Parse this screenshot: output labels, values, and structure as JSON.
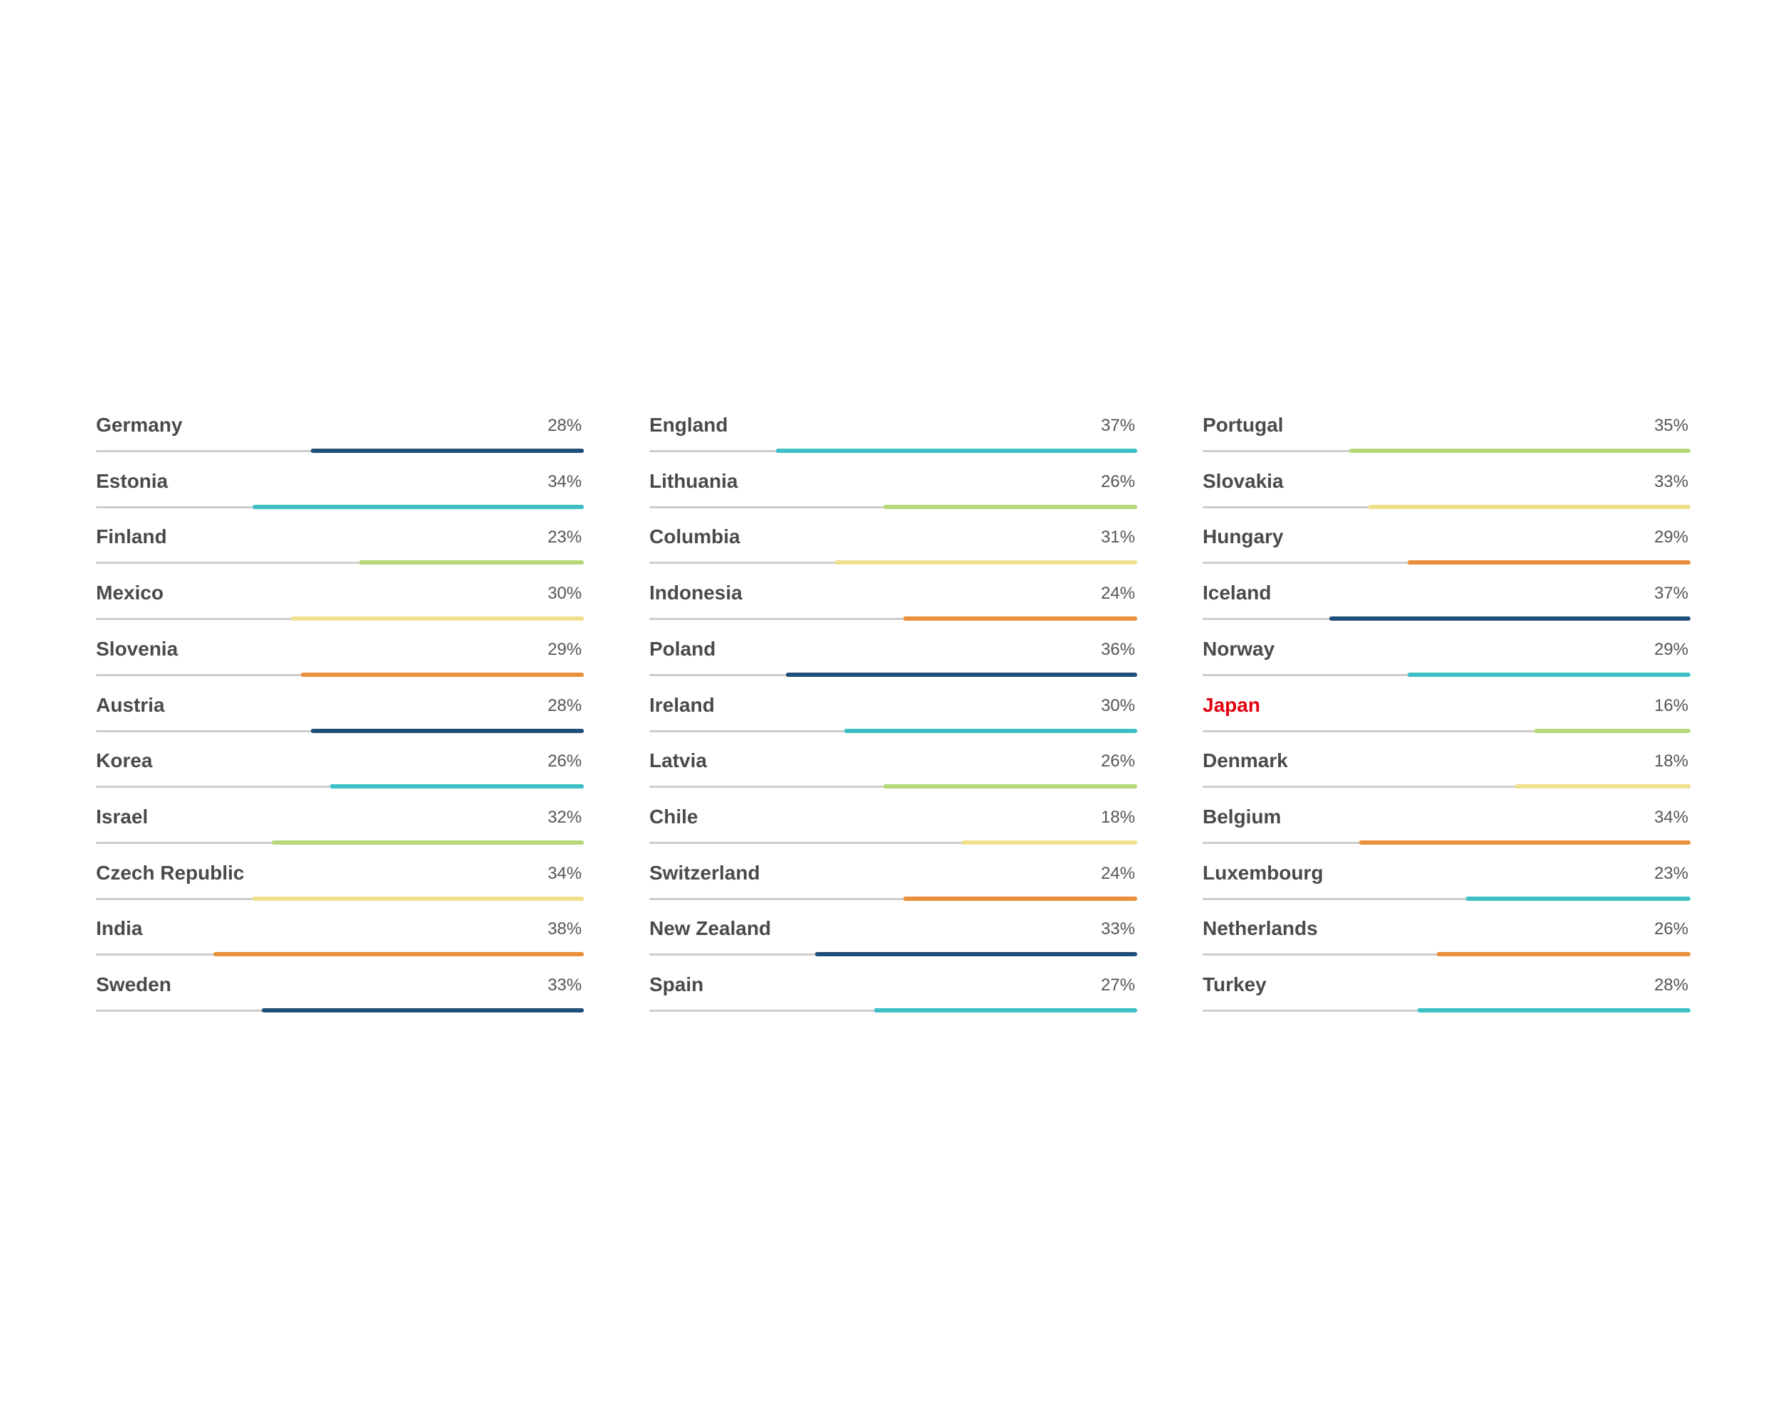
{
  "palette": {
    "navy": "#1f4e79",
    "teal": "#3dbfc4",
    "green": "#b5d97a",
    "yellow": "#f0df8c",
    "orange": "#ea8f3a",
    "track": "#cccccc",
    "highlight": "#e3000f"
  },
  "chart_data": {
    "type": "bar",
    "scale_max": 50,
    "columns": [
      {
        "rows": [
          {
            "country": "Germany",
            "label": "28%",
            "value": 28,
            "color": "navy"
          },
          {
            "country": "Estonia",
            "label": "34%",
            "value": 34,
            "color": "teal"
          },
          {
            "country": "Finland",
            "label": "23%",
            "value": 23,
            "color": "green"
          },
          {
            "country": "Mexico",
            "label": "30%",
            "value": 30,
            "color": "yellow"
          },
          {
            "country": "Slovenia",
            "label": "29%",
            "value": 29,
            "color": "orange"
          },
          {
            "country": "Austria",
            "label": "28%",
            "value": 28,
            "color": "navy"
          },
          {
            "country": "Korea",
            "label": "26%",
            "value": 26,
            "color": "teal"
          },
          {
            "country": "Israel",
            "label": "32%",
            "value": 32,
            "color": "green"
          },
          {
            "country": "Czech Republic",
            "label": "34%",
            "value": 34,
            "color": "yellow"
          },
          {
            "country": "India",
            "label": "38%",
            "value": 38,
            "color": "orange"
          },
          {
            "country": "Sweden",
            "label": "33%",
            "value": 33,
            "color": "navy"
          }
        ]
      },
      {
        "rows": [
          {
            "country": "England",
            "label": "37%",
            "value": 37,
            "color": "teal"
          },
          {
            "country": "Lithuania",
            "label": "26%",
            "value": 26,
            "color": "green"
          },
          {
            "country": "Columbia",
            "label": "31%",
            "value": 31,
            "color": "yellow"
          },
          {
            "country": "Indonesia",
            "label": "24%",
            "value": 24,
            "color": "orange"
          },
          {
            "country": "Poland",
            "label": "36%",
            "value": 36,
            "color": "navy"
          },
          {
            "country": "Ireland",
            "label": "30%",
            "value": 30,
            "color": "teal"
          },
          {
            "country": "Latvia",
            "label": "26%",
            "value": 26,
            "color": "green"
          },
          {
            "country": "Chile",
            "label": "18%",
            "value": 18,
            "color": "yellow"
          },
          {
            "country": "Switzerland",
            "label": "24%",
            "value": 24,
            "color": "orange"
          },
          {
            "country": "New Zealand",
            "label": "33%",
            "value": 33,
            "color": "navy"
          },
          {
            "country": "Spain",
            "label": "27%",
            "value": 27,
            "color": "teal"
          }
        ]
      },
      {
        "rows": [
          {
            "country": "Portugal",
            "label": "35%",
            "value": 35,
            "color": "green"
          },
          {
            "country": "Slovakia",
            "label": "33%",
            "value": 33,
            "color": "yellow"
          },
          {
            "country": "Hungary",
            "label": "29%",
            "value": 29,
            "color": "orange"
          },
          {
            "country": "Iceland",
            "label": "37%",
            "value": 37,
            "color": "navy"
          },
          {
            "country": "Norway",
            "label": "29%",
            "value": 29,
            "color": "teal"
          },
          {
            "country": "Japan",
            "label": "16%",
            "value": 16,
            "color": "green",
            "highlight": true
          },
          {
            "country": "Denmark",
            "label": "18%",
            "value": 18,
            "color": "yellow"
          },
          {
            "country": "Belgium",
            "label": "34%",
            "value": 34,
            "color": "orange"
          },
          {
            "country": "Luxembourg",
            "label": "23%",
            "value": 23,
            "color": "teal"
          },
          {
            "country": "Netherlands",
            "label": "26%",
            "value": 26,
            "color": "orange"
          },
          {
            "country": "Turkey",
            "label": "28%",
            "value": 28,
            "color": "teal"
          }
        ]
      }
    ]
  }
}
